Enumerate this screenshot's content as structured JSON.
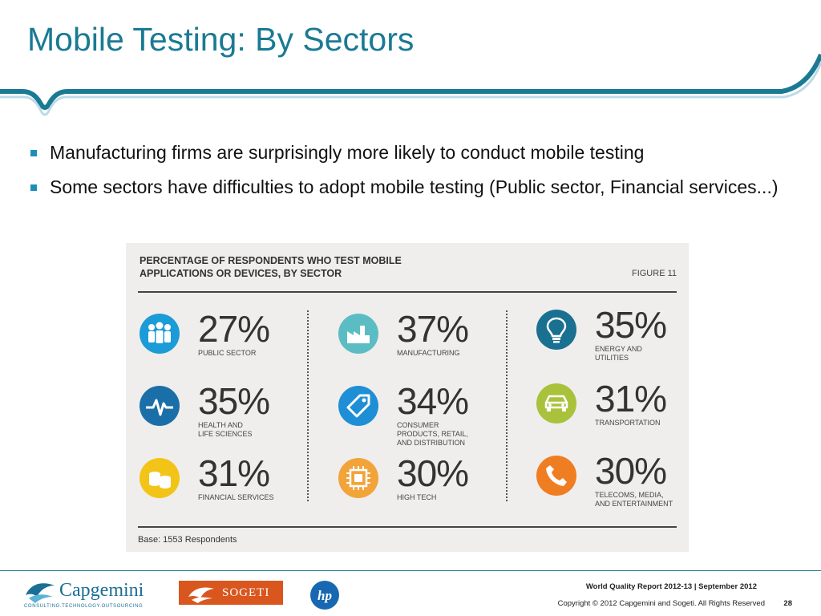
{
  "slide": {
    "title": "Mobile Testing: By Sectors",
    "bullets": [
      "Manufacturing firms are surprisingly more likely to conduct mobile testing",
      "Some sectors have difficulties to adopt mobile testing (Public sector, Financial services...)"
    ]
  },
  "infographic": {
    "title": "PERCENTAGE OF RESPONDENTS WHO TEST MOBILE APPLICATIONS OR DEVICES, BY SECTOR",
    "figure_label": "FIGURE 11",
    "base": "Base: 1553 Respondents",
    "sectors": [
      {
        "pct": "27%",
        "name": "PUBLIC SECTOR",
        "icon": "people-icon",
        "color": "#1b9bd7"
      },
      {
        "pct": "35%",
        "name": "HEALTH AND\nLIFE SCIENCES",
        "icon": "heartbeat-icon",
        "color": "#1b6fa8"
      },
      {
        "pct": "31%",
        "name": "FINANCIAL SERVICES",
        "icon": "coins-icon",
        "color": "#f2c418"
      },
      {
        "pct": "37%",
        "name": "MANUFACTURING",
        "icon": "factory-icon",
        "color": "#5bbcc4"
      },
      {
        "pct": "34%",
        "name": "CONSUMER\nPRODUCTS, RETAIL,\nAND DISTRIBUTION",
        "icon": "price-tag-icon",
        "color": "#1e8fd6"
      },
      {
        "pct": "30%",
        "name": "HIGH TECH",
        "icon": "chip-icon",
        "color": "#f2a33a"
      },
      {
        "pct": "35%",
        "name": "ENERGY AND\nUTILITIES",
        "icon": "lightbulb-icon",
        "color": "#1a7090"
      },
      {
        "pct": "31%",
        "name": "TRANSPORTATION",
        "icon": "car-icon",
        "color": "#a9c23c"
      },
      {
        "pct": "30%",
        "name": "TELECOMS, MEDIA,\nAND ENTERTAINMENT",
        "icon": "phone-icon",
        "color": "#ef7d22"
      }
    ]
  },
  "footer": {
    "capgemini_logo": "Capgemini",
    "capgemini_tagline": "CONSULTING.TECHNOLOGY.OUTSOURCING",
    "sogeti_logo": "SOGETI",
    "hp_logo": "hp",
    "report": "World Quality Report 2012-13 | September 2012",
    "copyright": "Copyright © 2012 Capgemini and Sogeti. All Rights Reserved",
    "page_number": "28"
  }
}
